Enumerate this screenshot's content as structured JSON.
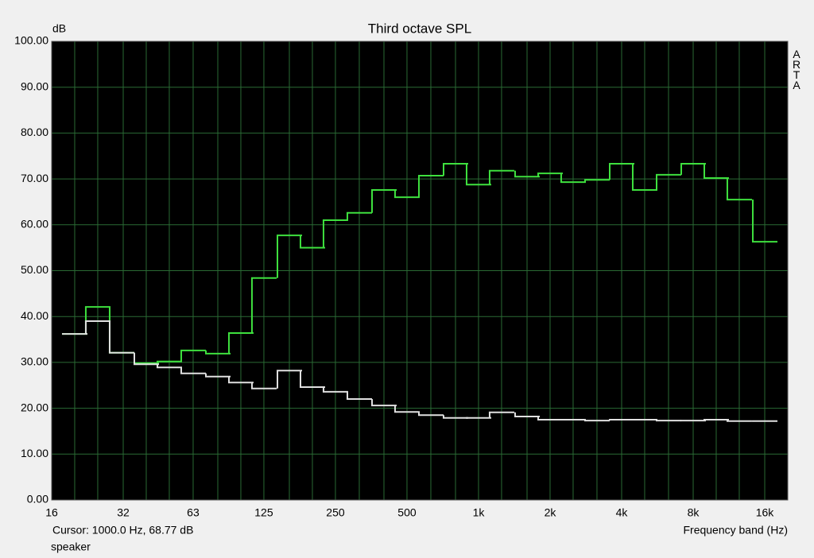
{
  "chart_data": {
    "type": "step",
    "title": "Third octave SPL",
    "y_label": "dB",
    "x_label": "Frequency band (Hz)",
    "watermark": "ARTA",
    "cursor_text": "Cursor:  1000.0 Hz, 68.77 dB",
    "footer": "speaker",
    "x_scale": "log",
    "grid": true,
    "plot_background": "#000000",
    "grid_color": "#2a6a34",
    "x": [
      20,
      25,
      31.5,
      40,
      50,
      63,
      80,
      100,
      125,
      160,
      200,
      250,
      315,
      400,
      500,
      630,
      800,
      1000,
      1250,
      1600,
      2000,
      2500,
      3150,
      4000,
      5000,
      6300,
      8000,
      10000,
      12500,
      16000
    ],
    "series": [
      {
        "color": "#3ee03e",
        "values": [
          36.2,
          42.1,
          32.1,
          29.8,
          30.2,
          32.6,
          31.9,
          36.4,
          48.4,
          57.7,
          55.0,
          61.0,
          62.6,
          67.6,
          66.0,
          70.7,
          73.3,
          68.77,
          71.8,
          70.5,
          71.2,
          69.3,
          69.8,
          73.3,
          67.6,
          70.9,
          73.3,
          70.2,
          65.5,
          56.3
        ]
      },
      {
        "color": "#e0e0e0",
        "values": [
          36.2,
          39.0,
          32.1,
          29.6,
          28.9,
          27.6,
          26.9,
          25.6,
          24.3,
          28.2,
          24.6,
          23.6,
          22.0,
          20.6,
          19.2,
          18.5,
          17.9,
          17.9,
          19.1,
          18.2,
          17.5,
          17.5,
          17.3,
          17.5,
          17.5,
          17.3,
          17.3,
          17.5,
          17.2,
          17.2
        ]
      }
    ],
    "xlim": [
      16,
      20000
    ],
    "xticks": [
      16,
      32,
      63,
      125,
      250,
      500,
      {
        "value": 1000,
        "label": "1k"
      },
      {
        "value": 2000,
        "label": "2k"
      },
      {
        "value": 4000,
        "label": "4k"
      },
      {
        "value": 8000,
        "label": "8k"
      },
      {
        "value": 16000,
        "label": "16k"
      }
    ],
    "xminorticks": [
      20,
      25,
      40,
      50,
      80,
      100,
      160,
      200,
      315,
      400,
      630,
      800,
      1250,
      1600,
      2500,
      3150,
      5000,
      6300,
      10000,
      12500
    ],
    "ylim": [
      0,
      100
    ],
    "yticks": [
      {
        "value": 0,
        "label": "0.00"
      },
      {
        "value": 10,
        "label": "10.00"
      },
      {
        "value": 20,
        "label": "20.00"
      },
      {
        "value": 30,
        "label": "30.00"
      },
      {
        "value": 40,
        "label": "40.00"
      },
      {
        "value": 50,
        "label": "50.00"
      },
      {
        "value": 60,
        "label": "60.00"
      },
      {
        "value": 70,
        "label": "70.00"
      },
      {
        "value": 80,
        "label": "80.00"
      },
      {
        "value": 90,
        "label": "90.00"
      },
      {
        "value": 100,
        "label": "100.00"
      }
    ]
  }
}
